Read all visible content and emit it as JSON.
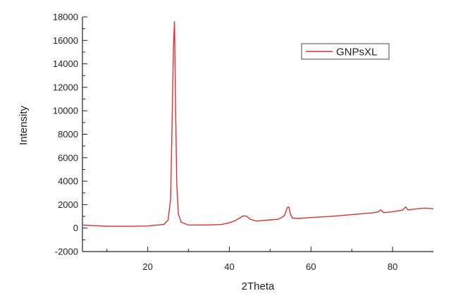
{
  "chart_data": {
    "type": "line",
    "title": "",
    "xlabel": "2Theta",
    "ylabel": "Intensity",
    "xlim": [
      4,
      90
    ],
    "ylim": [
      -2000,
      18000
    ],
    "xticks": [
      20,
      40,
      60,
      80
    ],
    "yticks": [
      -2000,
      0,
      2000,
      4000,
      6000,
      8000,
      10000,
      12000,
      14000,
      16000,
      18000
    ],
    "xtick_labels": [
      "20",
      "40",
      "60",
      "80"
    ],
    "ytick_labels": [
      "-2000",
      "0",
      "2000",
      "4000",
      "6000",
      "8000",
      "10000",
      "12000",
      "14000",
      "16000",
      "18000"
    ],
    "grid": false,
    "legend_position": "top-right",
    "colors": {
      "series": "#e03030",
      "axis": "#222222"
    },
    "series": [
      {
        "name": "GNPsXL",
        "x": [
          4,
          10,
          15,
          20,
          24,
          25,
          25.6,
          26,
          26.3,
          26.55,
          26.8,
          27.1,
          27.5,
          28.2,
          30,
          35,
          38,
          40,
          41.5,
          42.5,
          43.5,
          44.3,
          45,
          46,
          47,
          48,
          50,
          52,
          53.5,
          54.2,
          54.6,
          55,
          55.5,
          57,
          60,
          65,
          70,
          75,
          76.5,
          77.1,
          77.8,
          79,
          81,
          82.5,
          83.2,
          83.8,
          85,
          87,
          88,
          90
        ],
        "y": [
          250,
          160,
          150,
          180,
          320,
          700,
          2500,
          9500,
          15500,
          17600,
          11000,
          3800,
          1200,
          500,
          260,
          270,
          300,
          450,
          650,
          850,
          1050,
          1000,
          780,
          650,
          600,
          640,
          700,
          750,
          1050,
          1750,
          1800,
          1150,
          850,
          820,
          900,
          1000,
          1150,
          1300,
          1380,
          1550,
          1320,
          1350,
          1450,
          1550,
          1800,
          1550,
          1600,
          1680,
          1700,
          1650
        ]
      }
    ]
  }
}
